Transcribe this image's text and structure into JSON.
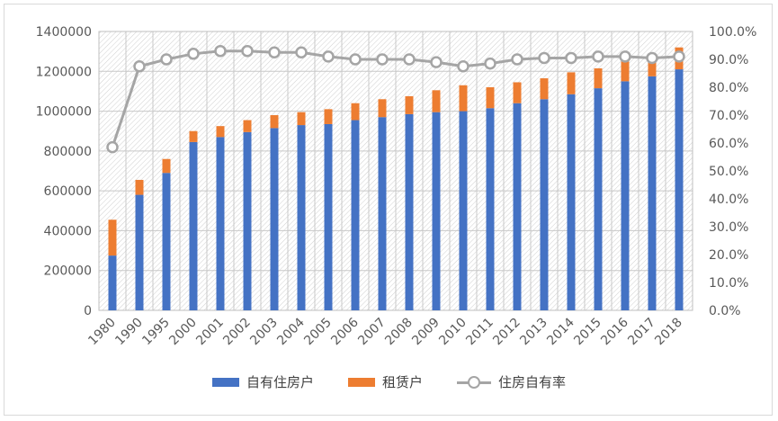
{
  "chart_data": {
    "type": "bar",
    "stacked": true,
    "categories": [
      "1980",
      "1990",
      "1995",
      "2000",
      "2001",
      "2002",
      "2003",
      "2004",
      "2005",
      "2006",
      "2007",
      "2008",
      "2009",
      "2010",
      "2011",
      "2012",
      "2013",
      "2014",
      "2015",
      "2016",
      "2017",
      "2018"
    ],
    "series": [
      {
        "name": "自有住房户",
        "type": "bar",
        "axis": "left",
        "color": "#4472C4",
        "values": [
          275000,
          580000,
          690000,
          845000,
          870000,
          895000,
          915000,
          930000,
          935000,
          955000,
          970000,
          985000,
          995000,
          1000000,
          1015000,
          1040000,
          1060000,
          1085000,
          1115000,
          1150000,
          1175000,
          1210000
        ]
      },
      {
        "name": "租赁户",
        "type": "bar",
        "axis": "left",
        "color": "#ED7D31",
        "values": [
          180000,
          75000,
          70000,
          55000,
          55000,
          60000,
          65000,
          65000,
          75000,
          85000,
          90000,
          90000,
          110000,
          130000,
          105000,
          105000,
          105000,
          110000,
          100000,
          100000,
          70000,
          110000
        ]
      },
      {
        "name": "住房自有率",
        "type": "line",
        "axis": "right",
        "color": "#A5A5A5",
        "values": [
          58.5,
          87.5,
          90.0,
          92.0,
          93.0,
          93.0,
          92.5,
          92.5,
          91.0,
          90.0,
          90.0,
          90.0,
          89.0,
          87.5,
          88.5,
          90.0,
          90.5,
          90.5,
          91.0,
          91.0,
          90.5,
          91.0
        ]
      }
    ],
    "y_left": {
      "range": [
        0,
        1400000
      ],
      "ticks": [
        "0",
        "200000",
        "400000",
        "600000",
        "800000",
        "1000000",
        "1200000",
        "1400000"
      ]
    },
    "y_right": {
      "range": [
        0,
        100
      ],
      "ticks": [
        "0.0%",
        "10.0%",
        "20.0%",
        "30.0%",
        "40.0%",
        "50.0%",
        "60.0%",
        "70.0%",
        "80.0%",
        "90.0%",
        "100.0%"
      ]
    },
    "grid": true,
    "legend_position": "bottom"
  }
}
